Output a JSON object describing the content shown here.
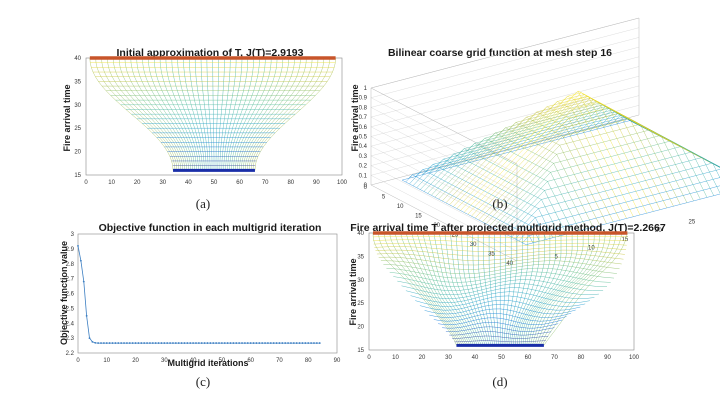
{
  "chart_data": [
    {
      "type": "line",
      "title": "Initial approximation of T, J(T)=2.9193",
      "xlabel": "",
      "ylabel": "Fire arrival time",
      "xlim": [
        0,
        100
      ],
      "ylim": [
        15,
        40
      ],
      "xticks": [
        "0",
        "10",
        "20",
        "30",
        "40",
        "50",
        "60",
        "70",
        "80",
        "90",
        "100"
      ],
      "yticks": [
        "15",
        "20",
        "25",
        "30",
        "35",
        "40"
      ],
      "series": [
        {
          "values": [
            40,
            40,
            40,
            40,
            40,
            40,
            40,
            40,
            40,
            40
          ]
        },
        {
          "values": [
            16,
            16,
            16,
            16,
            16,
            16,
            16,
            16
          ]
        }
      ],
      "caption": "(a)"
    },
    {
      "type": "line",
      "title": "Bilinear coarse grid function at mesh step 16",
      "ylabel": "Fire arrival time",
      "zlim": [
        0,
        1
      ],
      "zticks": [
        "0",
        "0.1",
        "0.2",
        "0.3",
        "0.4",
        "0.5",
        "0.6",
        "0.7",
        "0.8",
        "0.9",
        "1"
      ],
      "yticks": [
        "0",
        "5",
        "10",
        "15",
        "20",
        "25",
        "30",
        "35",
        "40"
      ],
      "xticks": [
        "5",
        "10",
        "15",
        "20",
        "25",
        "30",
        "35"
      ],
      "caption": "(b)"
    },
    {
      "type": "line",
      "title": "Objective function in each multigrid iteration",
      "xlabel": "Multigrid iterations",
      "ylabel": "Objective function value",
      "xlim": [
        0,
        90
      ],
      "ylim": [
        2.2,
        3.0
      ],
      "xticks": [
        "0",
        "10",
        "20",
        "30",
        "40",
        "50",
        "60",
        "70",
        "80",
        "90"
      ],
      "yticks": [
        "2.2",
        "2.3",
        "2.4",
        "2.5",
        "2.6",
        "2.7",
        "2.8",
        "2.9",
        "3"
      ],
      "series": [
        {
          "x": [
            0,
            1,
            2,
            3,
            4,
            5,
            6,
            7,
            8,
            9,
            10,
            11,
            12,
            13,
            14,
            15,
            16,
            17,
            18,
            19,
            20,
            21,
            22,
            23,
            24,
            25,
            26,
            27,
            28,
            29,
            30,
            31,
            32,
            33,
            34,
            35,
            36,
            37,
            38,
            39,
            40,
            41,
            42,
            43,
            44,
            45,
            46,
            47,
            48,
            49,
            50,
            51,
            52,
            53,
            54,
            55,
            56,
            57,
            58,
            59,
            60,
            61,
            62,
            63,
            64,
            65,
            66,
            67,
            68,
            69,
            70,
            71,
            72,
            73,
            74,
            75,
            76,
            77,
            78,
            79,
            80,
            81,
            82,
            83,
            84
          ],
          "y": [
            2.92,
            2.82,
            2.68,
            2.45,
            2.3,
            2.275,
            2.268,
            2.2667,
            2.2667,
            2.2667,
            2.2667,
            2.2667,
            2.2667,
            2.2667,
            2.2667,
            2.2667,
            2.2667,
            2.2667,
            2.2667,
            2.2667,
            2.2667,
            2.2667,
            2.2667,
            2.2667,
            2.2667,
            2.2667,
            2.2667,
            2.2667,
            2.2667,
            2.2667,
            2.2667,
            2.2667,
            2.2667,
            2.2667,
            2.2667,
            2.2667,
            2.2667,
            2.2667,
            2.2667,
            2.2667,
            2.2667,
            2.2667,
            2.2667,
            2.2667,
            2.2667,
            2.2667,
            2.2667,
            2.2667,
            2.2667,
            2.2667,
            2.2667,
            2.2667,
            2.2667,
            2.2667,
            2.2667,
            2.2667,
            2.2667,
            2.2667,
            2.2667,
            2.2667,
            2.2667,
            2.2667,
            2.2667,
            2.2667,
            2.2667,
            2.2667,
            2.2667,
            2.2667,
            2.2667,
            2.2667,
            2.2667,
            2.2667,
            2.2667,
            2.2667,
            2.2667,
            2.2667,
            2.2667,
            2.2667,
            2.2667,
            2.2667,
            2.2667,
            2.2667,
            2.2667,
            2.2667,
            2.2667
          ]
        }
      ],
      "caption": "(c)"
    },
    {
      "type": "line",
      "title": "Fire arrival time T after projected multigrid method, J(T)=2.2667",
      "xlabel": "",
      "ylabel": "Fire arrival time",
      "xlim": [
        0,
        100
      ],
      "ylim": [
        15,
        40
      ],
      "xticks": [
        "0",
        "10",
        "20",
        "30",
        "40",
        "50",
        "60",
        "70",
        "80",
        "90",
        "100"
      ],
      "yticks": [
        "15",
        "20",
        "25",
        "30",
        "35",
        "40"
      ],
      "caption": "(d)"
    }
  ],
  "colors": {
    "top_edge": "#c8552a",
    "bottom_edge": "#1a2ea8",
    "line_c": "#3d7fc2"
  }
}
